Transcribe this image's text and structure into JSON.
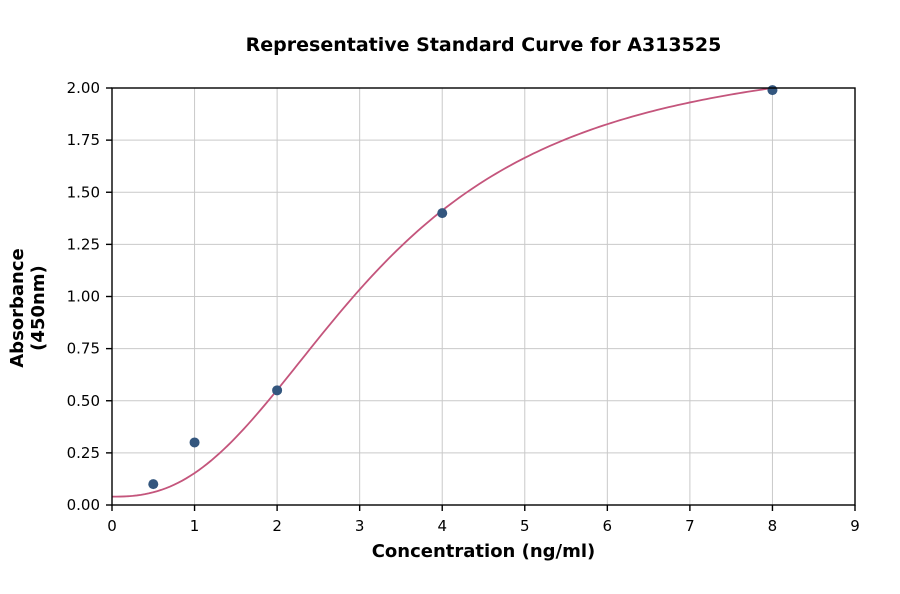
{
  "chart_data": {
    "type": "scatter",
    "title": "Representative Standard Curve for A313525",
    "xlabel": "Concentration (ng/ml)",
    "ylabel": "Absorbance (450nm)",
    "xlim": [
      0,
      9
    ],
    "ylim": [
      0,
      2.0
    ],
    "grid": true,
    "legend": "none",
    "x_tick_values": [
      0,
      1,
      2,
      3,
      4,
      5,
      6,
      7,
      8,
      9
    ],
    "x_tick_labels": [
      "0",
      "1",
      "2",
      "3",
      "4",
      "5",
      "6",
      "7",
      "8",
      "9"
    ],
    "y_tick_values": [
      0.0,
      0.25,
      0.5,
      0.75,
      1.0,
      1.25,
      1.5,
      1.75,
      2.0
    ],
    "y_tick_labels": [
      "0.00",
      "0.25",
      "0.50",
      "0.75",
      "1.00",
      "1.25",
      "1.50",
      "1.75",
      "2.00"
    ],
    "points": {
      "x": [
        0.5,
        1,
        2,
        4,
        8
      ],
      "y": [
        0.1,
        0.3,
        0.55,
        1.4,
        1.99
      ]
    },
    "fit_curve": {
      "model": "4PL",
      "a": 0.04,
      "d": 2.2,
      "c": 3.2,
      "b": 2.49,
      "x_start": 0,
      "x_end": 8
    },
    "colors": {
      "point": "#33567e",
      "curve": "#c4557c",
      "grid": "#c9c9c9",
      "axis": "#000000",
      "background": "#ffffff"
    }
  }
}
